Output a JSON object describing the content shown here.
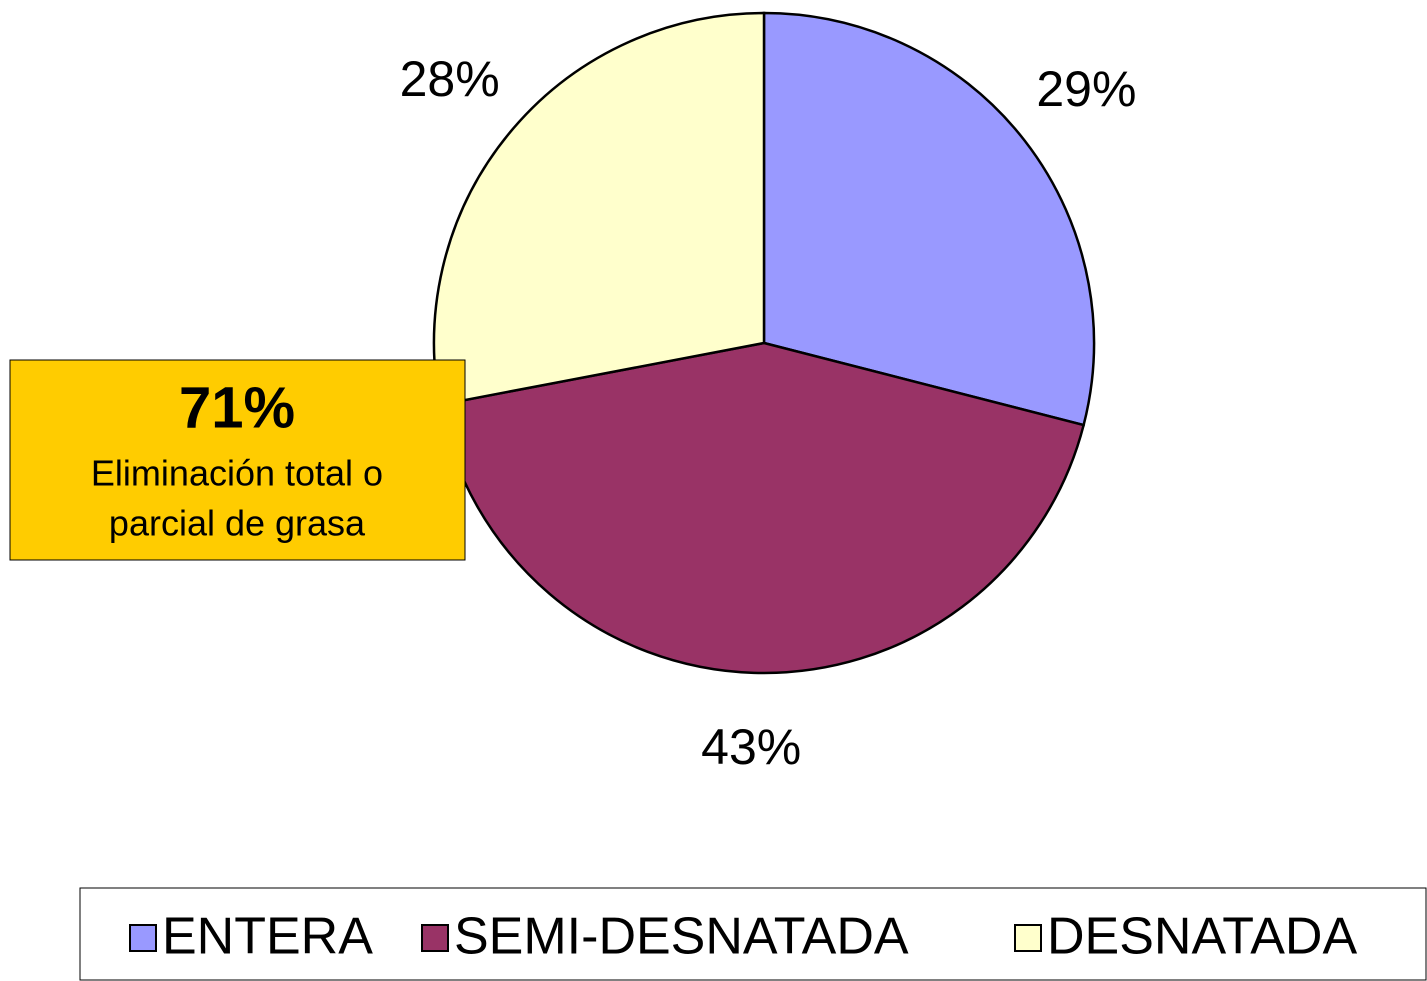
{
  "chart_data": {
    "type": "pie",
    "categories": [
      "ENTERA",
      "SEMI-DESNATADA",
      "DESNATADA"
    ],
    "values": [
      29,
      43,
      28
    ],
    "value_labels": [
      "29%",
      "43%",
      "28%"
    ],
    "colors": [
      "#9999ff",
      "#993366",
      "#ffffcc"
    ],
    "annotation": {
      "title": "71%",
      "text": [
        "Eliminación total o",
        "parcial de grasa"
      ],
      "color": "#ffcc00"
    },
    "legend": "bottom"
  }
}
